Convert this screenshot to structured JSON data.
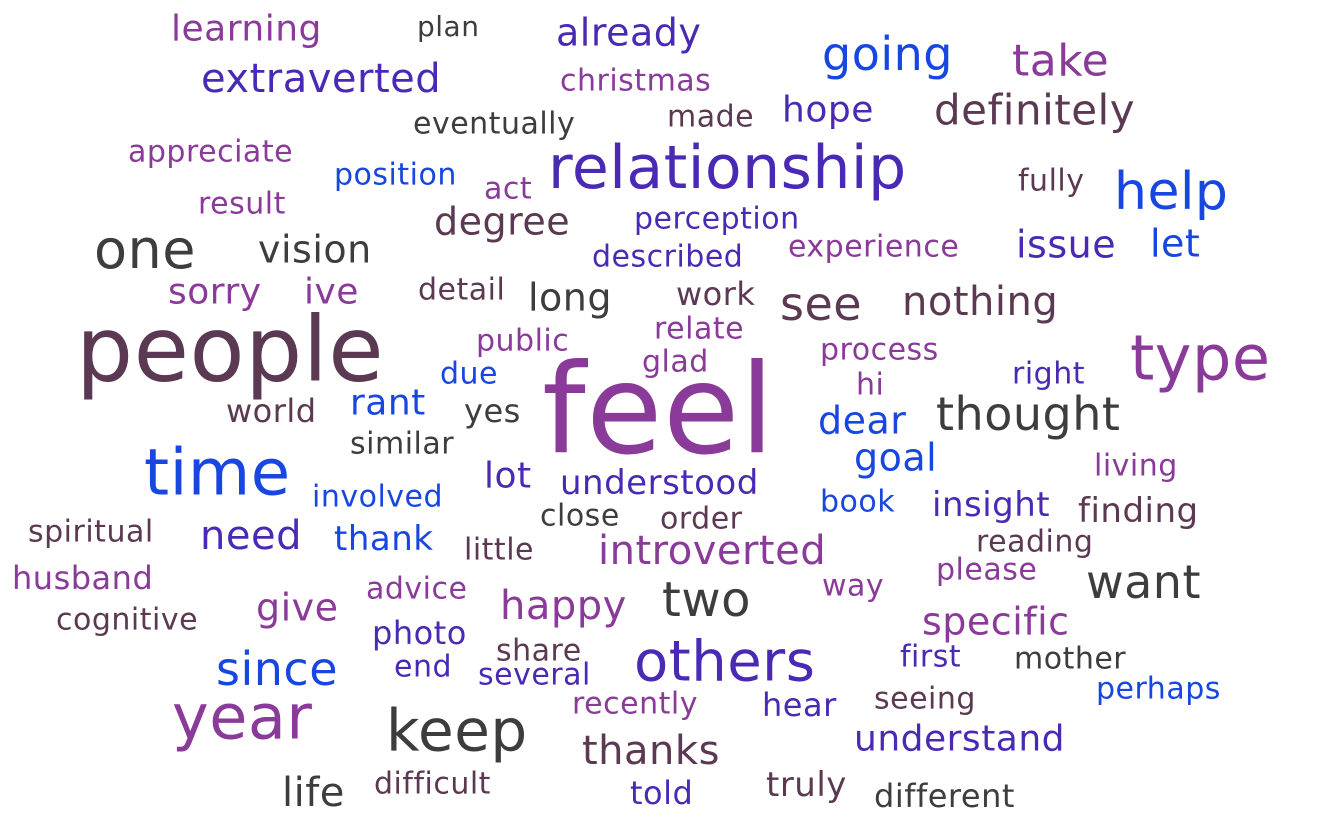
{
  "palette": {
    "blue": "#1746e0",
    "indigo": "#4a2ab5",
    "purple": "#8a3a98",
    "plum": "#5b3952",
    "charcoal": "#3d3d3d"
  },
  "words": [
    {
      "text": "learning",
      "color": "#8a3a98"
    },
    {
      "text": "plan",
      "color": "#3d3d3d"
    },
    {
      "text": "already",
      "color": "#4a2ab5"
    },
    {
      "text": "going",
      "color": "#1746e0"
    },
    {
      "text": "take",
      "color": "#8a3a98"
    },
    {
      "text": "extraverted",
      "color": "#4a2ab5"
    },
    {
      "text": "christmas",
      "color": "#8a3a98"
    },
    {
      "text": "hope",
      "color": "#4a2ab5"
    },
    {
      "text": "definitely",
      "color": "#5b3952"
    },
    {
      "text": "made",
      "color": "#5b3952"
    },
    {
      "text": "eventually",
      "color": "#3d3d3d"
    },
    {
      "text": "appreciate",
      "color": "#8a3a98"
    },
    {
      "text": "relationship",
      "color": "#4a2ab5"
    },
    {
      "text": "position",
      "color": "#1746e0"
    },
    {
      "text": "act",
      "color": "#8a3a98"
    },
    {
      "text": "fully",
      "color": "#5b3952"
    },
    {
      "text": "help",
      "color": "#1746e0"
    },
    {
      "text": "result",
      "color": "#8a3a98"
    },
    {
      "text": "degree",
      "color": "#5b3952"
    },
    {
      "text": "perception",
      "color": "#4a2ab5"
    },
    {
      "text": "one",
      "color": "#3d3d3d"
    },
    {
      "text": "vision",
      "color": "#3d3d3d"
    },
    {
      "text": "experience",
      "color": "#8a3a98"
    },
    {
      "text": "issue",
      "color": "#4a2ab5"
    },
    {
      "text": "let",
      "color": "#1746e0"
    },
    {
      "text": "described",
      "color": "#4a2ab5"
    },
    {
      "text": "sorry",
      "color": "#8a3a98"
    },
    {
      "text": "ive",
      "color": "#8a3a98"
    },
    {
      "text": "detail",
      "color": "#5b3952"
    },
    {
      "text": "long",
      "color": "#3d3d3d"
    },
    {
      "text": "work",
      "color": "#5b3952"
    },
    {
      "text": "see",
      "color": "#5b3952"
    },
    {
      "text": "nothing",
      "color": "#5b3952"
    },
    {
      "text": "people",
      "color": "#5b3952"
    },
    {
      "text": "relate",
      "color": "#8a3a98"
    },
    {
      "text": "public",
      "color": "#8a3a98"
    },
    {
      "text": "type",
      "color": "#8a3a98"
    },
    {
      "text": "process",
      "color": "#8a3a98"
    },
    {
      "text": "glad",
      "color": "#8a3a98"
    },
    {
      "text": "due",
      "color": "#1746e0"
    },
    {
      "text": "right",
      "color": "#4a2ab5"
    },
    {
      "text": "hi",
      "color": "#8a3a98"
    },
    {
      "text": "feel",
      "color": "#8a3a98"
    },
    {
      "text": "world",
      "color": "#5b3952"
    },
    {
      "text": "rant",
      "color": "#1746e0"
    },
    {
      "text": "yes",
      "color": "#3d3d3d"
    },
    {
      "text": "thought",
      "color": "#3d3d3d"
    },
    {
      "text": "dear",
      "color": "#1746e0"
    },
    {
      "text": "similar",
      "color": "#3d3d3d"
    },
    {
      "text": "goal",
      "color": "#1746e0"
    },
    {
      "text": "time",
      "color": "#1746e0"
    },
    {
      "text": "living",
      "color": "#8a3a98"
    },
    {
      "text": "lot",
      "color": "#4a2ab5"
    },
    {
      "text": "understood",
      "color": "#4a2ab5"
    },
    {
      "text": "involved",
      "color": "#1746e0"
    },
    {
      "text": "book",
      "color": "#1746e0"
    },
    {
      "text": "insight",
      "color": "#4a2ab5"
    },
    {
      "text": "finding",
      "color": "#5b3952"
    },
    {
      "text": "close",
      "color": "#3d3d3d"
    },
    {
      "text": "order",
      "color": "#5b3952"
    },
    {
      "text": "spiritual",
      "color": "#5b3952"
    },
    {
      "text": "need",
      "color": "#4a2ab5"
    },
    {
      "text": "thank",
      "color": "#1746e0"
    },
    {
      "text": "reading",
      "color": "#5b3952"
    },
    {
      "text": "little",
      "color": "#5b3952"
    },
    {
      "text": "introverted",
      "color": "#8a3a98"
    },
    {
      "text": "husband",
      "color": "#8a3a98"
    },
    {
      "text": "please",
      "color": "#8a3a98"
    },
    {
      "text": "want",
      "color": "#3d3d3d"
    },
    {
      "text": "advice",
      "color": "#8a3a98"
    },
    {
      "text": "way",
      "color": "#8a3a98"
    },
    {
      "text": "two",
      "color": "#3d3d3d"
    },
    {
      "text": "cognitive",
      "color": "#5b3952"
    },
    {
      "text": "give",
      "color": "#8a3a98"
    },
    {
      "text": "happy",
      "color": "#8a3a98"
    },
    {
      "text": "specific",
      "color": "#8a3a98"
    },
    {
      "text": "photo",
      "color": "#4a2ab5"
    },
    {
      "text": "share",
      "color": "#5b3952"
    },
    {
      "text": "since",
      "color": "#1746e0"
    },
    {
      "text": "others",
      "color": "#4a2ab5"
    },
    {
      "text": "first",
      "color": "#4a2ab5"
    },
    {
      "text": "mother",
      "color": "#3d3d3d"
    },
    {
      "text": "end",
      "color": "#4a2ab5"
    },
    {
      "text": "several",
      "color": "#4a2ab5"
    },
    {
      "text": "perhaps",
      "color": "#1746e0"
    },
    {
      "text": "recently",
      "color": "#8a3a98"
    },
    {
      "text": "seeing",
      "color": "#5b3952"
    },
    {
      "text": "year",
      "color": "#8a3a98"
    },
    {
      "text": "keep",
      "color": "#3d3d3d"
    },
    {
      "text": "hear",
      "color": "#4a2ab5"
    },
    {
      "text": "understand",
      "color": "#4a2ab5"
    },
    {
      "text": "thanks",
      "color": "#5b3952"
    },
    {
      "text": "life",
      "color": "#3d3d3d"
    },
    {
      "text": "difficult",
      "color": "#5b3952"
    },
    {
      "text": "told",
      "color": "#4a2ab5"
    },
    {
      "text": "truly",
      "color": "#5b3952"
    },
    {
      "text": "different",
      "color": "#3d3d3d"
    }
  ]
}
